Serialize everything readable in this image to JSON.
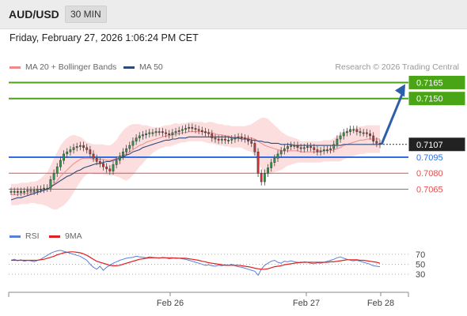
{
  "header": {
    "symbol": "AUD/USD",
    "timeframe": "30 MIN"
  },
  "datetime": "Friday, February 27, 2026 1:06:24 PM CET",
  "legend": {
    "bb": {
      "label": "MA 20 + Bollinger Bands",
      "color": "#f08a8a"
    },
    "ma50": {
      "label": "MA 50",
      "color": "#2c4a7c"
    },
    "rsi": {
      "label": "RSI",
      "color": "#5b7fd6"
    },
    "ma9": {
      "label": "9MA",
      "color": "#e02020"
    }
  },
  "credit": "Research © 2026 Trading Central",
  "chart_data": {
    "type": "candlestick",
    "instrument": "AUD/USD",
    "timeframe": "30 MIN",
    "price_range": [
      0.7035,
      0.7172
    ],
    "x_ticks": [
      "Feb 26",
      "Feb 27",
      "Feb 28"
    ],
    "last_price": "0.7107",
    "levels": [
      {
        "value": 0.7165,
        "label": "0.7165",
        "color": "#4aa516",
        "kind": "target"
      },
      {
        "value": 0.715,
        "label": "0.7150",
        "color": "#4aa516",
        "kind": "target"
      },
      {
        "value": 0.7095,
        "label": "0.7095",
        "color": "#2f6fe0",
        "kind": "pivot"
      },
      {
        "value": 0.708,
        "label": "0.7080",
        "color": "#e05050",
        "kind": "support"
      },
      {
        "value": 0.7065,
        "label": "0.7065",
        "color": "#e05050",
        "kind": "support"
      }
    ],
    "close": [
      0.7063,
      0.7063,
      0.7062,
      0.7063,
      0.7063,
      0.7064,
      0.7064,
      0.7063,
      0.7065,
      0.7065,
      0.7066,
      0.7066,
      0.7074,
      0.708,
      0.7086,
      0.7092,
      0.7098,
      0.71,
      0.7102,
      0.7104,
      0.7105,
      0.7106,
      0.7104,
      0.7102,
      0.7098,
      0.7094,
      0.7091,
      0.7089,
      0.7086,
      0.7084,
      0.7082,
      0.7088,
      0.7092,
      0.7096,
      0.71,
      0.7103,
      0.7106,
      0.711,
      0.7113,
      0.7115,
      0.7116,
      0.7117,
      0.7118,
      0.7118,
      0.7119,
      0.7119,
      0.7118,
      0.7117,
      0.7116,
      0.7118,
      0.7119,
      0.712,
      0.7121,
      0.7122,
      0.7123,
      0.7122,
      0.7121,
      0.712,
      0.7119,
      0.7118,
      0.7117,
      0.7113,
      0.7112,
      0.7111,
      0.7112,
      0.7111,
      0.7111,
      0.7112,
      0.7113,
      0.7114,
      0.7113,
      0.7112,
      0.711,
      0.7108,
      0.71,
      0.708,
      0.7072,
      0.708,
      0.7085,
      0.709,
      0.7094,
      0.7098,
      0.7101,
      0.7103,
      0.7105,
      0.7106,
      0.7106,
      0.7104,
      0.7103,
      0.7104,
      0.7105,
      0.7104,
      0.7102,
      0.71,
      0.7101,
      0.7102,
      0.7102,
      0.7103,
      0.7107,
      0.7112,
      0.7115,
      0.7118,
      0.7119,
      0.7121,
      0.7121,
      0.7119,
      0.7118,
      0.7118,
      0.7117,
      0.7115,
      0.711,
      0.7108,
      0.7107
    ],
    "ma20": [
      0.706,
      0.706,
      0.706,
      0.7061,
      0.7061,
      0.7061,
      0.7062,
      0.7062,
      0.7062,
      0.7063,
      0.7064,
      0.7065,
      0.7067,
      0.707,
      0.7073,
      0.7077,
      0.708,
      0.7083,
      0.7086,
      0.7089,
      0.7091,
      0.7093,
      0.7094,
      0.7094,
      0.7094,
      0.7093,
      0.7093,
      0.7093,
      0.7093,
      0.7092,
      0.7092,
      0.7093,
      0.7094,
      0.7096,
      0.7097,
      0.7098,
      0.71,
      0.7102,
      0.7104,
      0.7106,
      0.7107,
      0.7109,
      0.711,
      0.7111,
      0.7112,
      0.7113,
      0.7114,
      0.7115,
      0.7115,
      0.7116,
      0.7117,
      0.7117,
      0.7118,
      0.7118,
      0.7119,
      0.7119,
      0.7119,
      0.7119,
      0.7119,
      0.7118,
      0.7118,
      0.7118,
      0.7117,
      0.7116,
      0.7116,
      0.7115,
      0.7115,
      0.7114,
      0.7114,
      0.7114,
      0.7114,
      0.7113,
      0.7113,
      0.7113,
      0.7112,
      0.711,
      0.7108,
      0.7106,
      0.7105,
      0.7104,
      0.7103,
      0.7102,
      0.7101,
      0.7101,
      0.7101,
      0.7101,
      0.7101,
      0.7101,
      0.71,
      0.71,
      0.71,
      0.71,
      0.71,
      0.71,
      0.71,
      0.7101,
      0.7101,
      0.7101,
      0.7102,
      0.7103,
      0.7104,
      0.7106,
      0.7107,
      0.7108,
      0.7109,
      0.711,
      0.7111,
      0.7111,
      0.7112,
      0.7112,
      0.7112,
      0.7112,
      0.7112
    ],
    "bb_width": [
      0.001,
      0.001,
      0.001,
      0.001,
      0.001,
      0.001,
      0.001,
      0.001,
      0.0011,
      0.0012,
      0.0014,
      0.0016,
      0.002,
      0.0024,
      0.0027,
      0.0029,
      0.003,
      0.003,
      0.0029,
      0.0027,
      0.0024,
      0.0021,
      0.0018,
      0.0015,
      0.0014,
      0.0014,
      0.0014,
      0.0014,
      0.0014,
      0.0014,
      0.0014,
      0.0015,
      0.0017,
      0.002,
      0.0023,
      0.0025,
      0.0025,
      0.0024,
      0.0022,
      0.002,
      0.0018,
      0.0016,
      0.0014,
      0.0012,
      0.0011,
      0.001,
      0.001,
      0.001,
      0.001,
      0.001,
      0.001,
      0.0009,
      0.0009,
      0.0009,
      0.0009,
      0.0009,
      0.0009,
      0.0009,
      0.0009,
      0.0009,
      0.001,
      0.001,
      0.001,
      0.001,
      0.001,
      0.001,
      0.001,
      0.001,
      0.001,
      0.001,
      0.001,
      0.0011,
      0.0012,
      0.0013,
      0.0016,
      0.002,
      0.0024,
      0.0026,
      0.0026,
      0.0024,
      0.0022,
      0.002,
      0.0018,
      0.0016,
      0.0014,
      0.0013,
      0.0012,
      0.0011,
      0.001,
      0.001,
      0.001,
      0.001,
      0.001,
      0.001,
      0.001,
      0.001,
      0.001,
      0.001,
      0.0011,
      0.0012,
      0.0013,
      0.0013,
      0.0013,
      0.0013,
      0.0013,
      0.0013,
      0.0013,
      0.0013,
      0.0013,
      0.0013,
      0.0013,
      0.0013,
      0.0013
    ],
    "ma50": [
      0.7055,
      0.7056,
      0.7057,
      0.7057,
      0.7058,
      0.7059,
      0.706,
      0.7061,
      0.7062,
      0.7063,
      0.7064,
      0.7065,
      0.7067,
      0.7069,
      0.7071,
      0.7073,
      0.7075,
      0.7077,
      0.7078,
      0.708,
      0.7082,
      0.7083,
      0.7085,
      0.7086,
      0.7087,
      0.7088,
      0.7089,
      0.7089,
      0.709,
      0.7091,
      0.7091,
      0.7092,
      0.7093,
      0.7094,
      0.7095,
      0.7097,
      0.7098,
      0.71,
      0.7101,
      0.7102,
      0.7104,
      0.7105,
      0.7106,
      0.7107,
      0.7108,
      0.7109,
      0.711,
      0.7111,
      0.7111,
      0.7112,
      0.7112,
      0.7113,
      0.7113,
      0.7113,
      0.7114,
      0.7114,
      0.7114,
      0.7114,
      0.7114,
      0.7114,
      0.7114,
      0.7114,
      0.7114,
      0.7114,
      0.7114,
      0.7114,
      0.7114,
      0.7113,
      0.7113,
      0.7113,
      0.7112,
      0.7112,
      0.7112,
      0.7111,
      0.7111,
      0.711,
      0.711,
      0.7109,
      0.7109,
      0.7108,
      0.7108,
      0.7108,
      0.7107,
      0.7107,
      0.7107,
      0.7107,
      0.7106,
      0.7106,
      0.7106,
      0.7106,
      0.7106,
      0.7106,
      0.7106,
      0.7106,
      0.7106,
      0.7106,
      0.7106,
      0.7106,
      0.7106,
      0.7106,
      0.7106,
      0.7107,
      0.7107,
      0.7107,
      0.7107,
      0.7107,
      0.7107,
      0.7107,
      0.7107,
      0.7107,
      0.7107,
      0.7107,
      0.7107
    ],
    "forecast": {
      "from": "0.7107",
      "to": "0.7165",
      "color": "#2c5fa8"
    },
    "rsi": {
      "ticks": [
        70,
        50,
        30
      ],
      "rsi_values": [
        58,
        60,
        57,
        59,
        56,
        58,
        57,
        55,
        58,
        60,
        64,
        68,
        72,
        75,
        77,
        78,
        76,
        74,
        72,
        70,
        68,
        66,
        62,
        58,
        50,
        44,
        40,
        46,
        38,
        44,
        48,
        52,
        55,
        58,
        60,
        62,
        63,
        64,
        66,
        65,
        64,
        63,
        65,
        64,
        63,
        62,
        64,
        63,
        61,
        62,
        63,
        62,
        61,
        60,
        58,
        56,
        54,
        52,
        50,
        48,
        49,
        47,
        46,
        48,
        47,
        49,
        48,
        50,
        47,
        45,
        44,
        42,
        40,
        38,
        36,
        28,
        40,
        48,
        52,
        56,
        58,
        54,
        52,
        56,
        55,
        57,
        55,
        54,
        53,
        55,
        54,
        52,
        51,
        53,
        52,
        54,
        56,
        58,
        60,
        63,
        65,
        62,
        60,
        58,
        57,
        58,
        56,
        54,
        52,
        50,
        47,
        46,
        45
      ],
      "ma9_values": [
        58,
        58,
        58,
        58,
        58,
        58,
        58,
        58,
        58,
        59,
        60,
        62,
        64,
        66,
        69,
        71,
        73,
        74,
        75,
        75,
        74,
        73,
        71,
        68,
        64,
        60,
        56,
        54,
        52,
        50,
        48,
        47,
        47,
        48,
        50,
        52,
        54,
        56,
        58,
        60,
        61,
        62,
        63,
        63,
        63,
        63,
        63,
        63,
        63,
        63,
        62,
        62,
        62,
        62,
        61,
        60,
        59,
        58,
        56,
        55,
        53,
        52,
        51,
        50,
        49,
        48,
        48,
        48,
        48,
        48,
        47,
        46,
        45,
        44,
        42,
        41,
        40,
        40,
        41,
        43,
        45,
        46,
        47,
        49,
        50,
        51,
        52,
        53,
        54,
        54,
        54,
        54,
        54,
        54,
        54,
        54,
        54,
        55,
        55,
        56,
        57,
        58,
        59,
        59,
        59,
        59,
        58,
        58,
        57,
        56,
        55,
        54,
        52
      ]
    }
  }
}
